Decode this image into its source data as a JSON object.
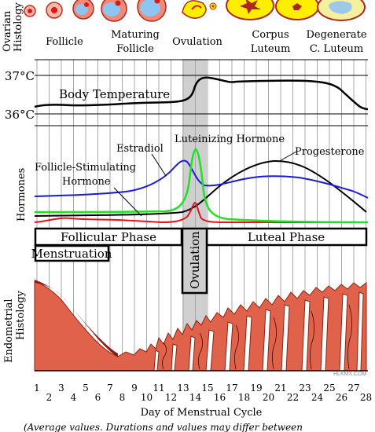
{
  "ovarian": {
    "side_label_1": "Ovarian",
    "side_label_2": "Histology",
    "stages": [
      {
        "line1": "Follicle",
        "line2": ""
      },
      {
        "line1": "Maturing",
        "line2": "Follicle"
      },
      {
        "line1": "Ovulation",
        "line2": ""
      },
      {
        "line1": "Corpus",
        "line2": "Luteum"
      },
      {
        "line1": "Degenerate",
        "line2": "C. Luteum"
      }
    ]
  },
  "temperature": {
    "title": "Body Temperature",
    "tick_high": "37°C",
    "tick_low": "36°C"
  },
  "hormones": {
    "side_label": "Hormones",
    "fsh_line1": "Follicle-Stimulating",
    "fsh_line2": "Hormone",
    "estradiol": "Estradiol",
    "lh": "Luteinizing  Hormone",
    "progesterone": "Progesterone",
    "colors": {
      "fsh": "#e8101a",
      "estradiol": "#1a1ad8",
      "lh": "#22e022",
      "progesterone": "#000000"
    }
  },
  "phases": {
    "follicular": "Follicular Phase",
    "luteal": "Luteal Phase",
    "menstruation": "Menstruation",
    "ovulation": "Ovulation"
  },
  "endometrial": {
    "side_label_1": "Endometrial",
    "side_label_2": "Histology",
    "tissue_color": "#e0624a"
  },
  "x_axis": {
    "ticks_odd": [
      "1",
      "3",
      "5",
      "7",
      "9",
      "11",
      "13",
      "15",
      "17",
      "19",
      "21",
      "23",
      "25",
      "27"
    ],
    "ticks_even": [
      "2",
      "4",
      "6",
      "8",
      "10",
      "12",
      "14",
      "16",
      "18",
      "20",
      "22",
      "24",
      "26",
      "28"
    ],
    "label": "Day of Menstrual Cycle"
  },
  "caption": "(Average values. Durations and values may differ between",
  "watermark": "HLKMX.COM"
}
